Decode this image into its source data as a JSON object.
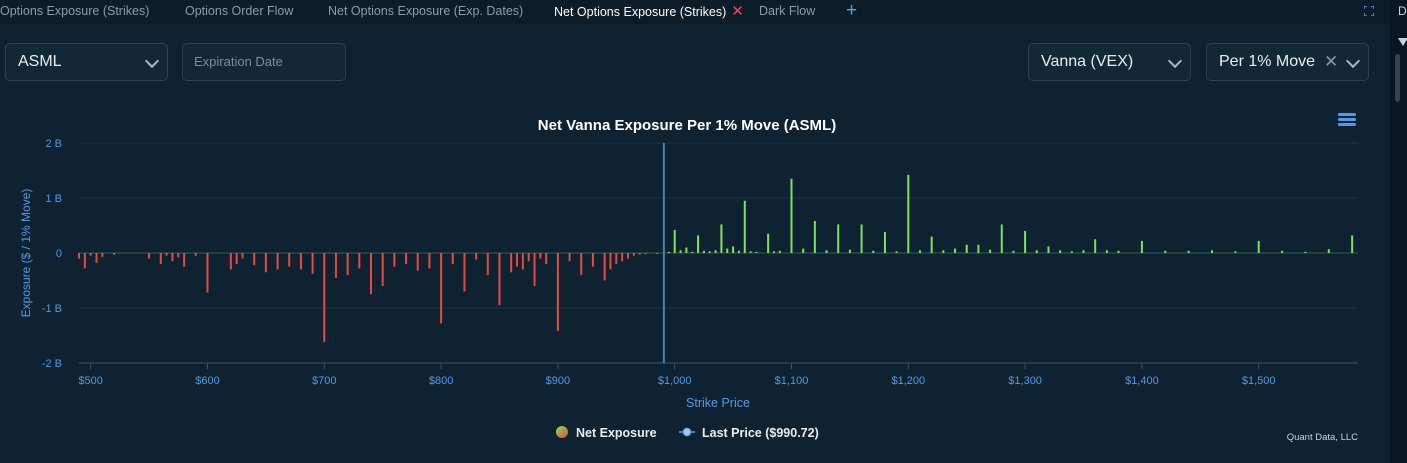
{
  "tabs": [
    {
      "label": "Options Exposure (Strikes)",
      "active": false
    },
    {
      "label": "Options Order Flow",
      "active": false
    },
    {
      "label": "Net Options Exposure (Exp. Dates)",
      "active": false
    },
    {
      "label": "Net Options Exposure (Strikes)",
      "active": true
    },
    {
      "label": "Dark Flow",
      "active": false
    }
  ],
  "tab_close_glyph": "✕",
  "tab_add_glyph": "+",
  "right_strip_label": "Da",
  "controls": {
    "ticker": "ASML",
    "expiration_placeholder": "Expiration Date",
    "greek": "Vanna (VEX)",
    "move": "Per 1% Move",
    "clear_glyph": "✕"
  },
  "colors": {
    "background": "#0f2231",
    "positive": "#7ee35a",
    "negative": "#e8483f",
    "last_price_line": "#4d7fb0",
    "axis_text": "#4f9be6"
  },
  "chart_data": {
    "type": "bar",
    "title": "Net Vanna Exposure Per 1% Move (ASML)",
    "xlabel": "Strike Price",
    "ylabel": "Exposure ($ / 1% Move)",
    "xlim": [
      490,
      1585
    ],
    "ylim": [
      -2,
      2
    ],
    "y_ticks": [
      {
        "value": 2,
        "label": "2 B"
      },
      {
        "value": 1,
        "label": "1 B"
      },
      {
        "value": 0,
        "label": "0"
      },
      {
        "value": -1,
        "label": "-1 B"
      },
      {
        "value": -2,
        "label": "-2 B"
      }
    ],
    "x_ticks": [
      {
        "value": 500,
        "label": "$500"
      },
      {
        "value": 600,
        "label": "$600"
      },
      {
        "value": 700,
        "label": "$700"
      },
      {
        "value": 800,
        "label": "$800"
      },
      {
        "value": 900,
        "label": "$900"
      },
      {
        "value": 1000,
        "label": "$1,000"
      },
      {
        "value": 1100,
        "label": "$1,100"
      },
      {
        "value": 1200,
        "label": "$1,200"
      },
      {
        "value": 1300,
        "label": "$1,300"
      },
      {
        "value": 1400,
        "label": "$1,400"
      },
      {
        "value": 1500,
        "label": "$1,500"
      }
    ],
    "last_price": 990.72,
    "legend": [
      {
        "name": "Net Exposure",
        "marker": "net"
      },
      {
        "name": "Last Price ($990.72)",
        "marker": "line"
      }
    ],
    "legend_position": "bottom",
    "grid": true,
    "credit": "Quant Data, LLC",
    "units": "billions",
    "series": [
      {
        "name": "Net Exposure",
        "points": [
          [
            490,
            -0.1
          ],
          [
            495,
            -0.28
          ],
          [
            500,
            -0.05
          ],
          [
            505,
            -0.18
          ],
          [
            510,
            -0.07
          ],
          [
            520,
            -0.03
          ],
          [
            550,
            -0.1
          ],
          [
            560,
            -0.2
          ],
          [
            565,
            -0.05
          ],
          [
            570,
            -0.15
          ],
          [
            575,
            -0.08
          ],
          [
            580,
            -0.25
          ],
          [
            590,
            -0.05
          ],
          [
            600,
            -0.72
          ],
          [
            620,
            -0.3
          ],
          [
            625,
            -0.2
          ],
          [
            630,
            -0.1
          ],
          [
            640,
            -0.22
          ],
          [
            650,
            -0.35
          ],
          [
            660,
            -0.3
          ],
          [
            670,
            -0.25
          ],
          [
            680,
            -0.3
          ],
          [
            690,
            -0.38
          ],
          [
            700,
            -1.62
          ],
          [
            710,
            -0.45
          ],
          [
            720,
            -0.4
          ],
          [
            730,
            -0.28
          ],
          [
            740,
            -0.75
          ],
          [
            750,
            -0.6
          ],
          [
            760,
            -0.25
          ],
          [
            770,
            -0.2
          ],
          [
            780,
            -0.32
          ],
          [
            790,
            -0.28
          ],
          [
            800,
            -1.28
          ],
          [
            810,
            -0.2
          ],
          [
            820,
            -0.7
          ],
          [
            830,
            -0.12
          ],
          [
            840,
            -0.4
          ],
          [
            850,
            -0.95
          ],
          [
            860,
            -0.35
          ],
          [
            865,
            -0.25
          ],
          [
            870,
            -0.3
          ],
          [
            875,
            -0.15
          ],
          [
            880,
            -0.6
          ],
          [
            885,
            -0.1
          ],
          [
            890,
            -0.2
          ],
          [
            900,
            -1.42
          ],
          [
            910,
            -0.15
          ],
          [
            920,
            -0.4
          ],
          [
            930,
            -0.25
          ],
          [
            940,
            -0.5
          ],
          [
            945,
            -0.3
          ],
          [
            950,
            -0.2
          ],
          [
            955,
            -0.15
          ],
          [
            960,
            -0.1
          ],
          [
            965,
            -0.05
          ],
          [
            970,
            -0.03
          ],
          [
            975,
            -0.02
          ],
          [
            985,
            -0.01
          ],
          [
            995,
            0.02
          ],
          [
            1000,
            0.42
          ],
          [
            1005,
            0.05
          ],
          [
            1010,
            0.1
          ],
          [
            1015,
            0.02
          ],
          [
            1020,
            0.32
          ],
          [
            1025,
            0.04
          ],
          [
            1030,
            0.03
          ],
          [
            1035,
            0.05
          ],
          [
            1040,
            0.52
          ],
          [
            1045,
            0.08
          ],
          [
            1050,
            0.12
          ],
          [
            1055,
            0.04
          ],
          [
            1060,
            0.95
          ],
          [
            1065,
            0.03
          ],
          [
            1070,
            0.02
          ],
          [
            1080,
            0.35
          ],
          [
            1085,
            0.03
          ],
          [
            1090,
            0.04
          ],
          [
            1100,
            1.35
          ],
          [
            1110,
            0.08
          ],
          [
            1120,
            0.58
          ],
          [
            1130,
            0.05
          ],
          [
            1140,
            0.52
          ],
          [
            1150,
            0.06
          ],
          [
            1160,
            0.52
          ],
          [
            1170,
            0.04
          ],
          [
            1180,
            0.38
          ],
          [
            1190,
            0.03
          ],
          [
            1200,
            1.42
          ],
          [
            1210,
            0.05
          ],
          [
            1220,
            0.3
          ],
          [
            1230,
            0.05
          ],
          [
            1240,
            0.08
          ],
          [
            1250,
            0.15
          ],
          [
            1260,
            0.15
          ],
          [
            1270,
            0.06
          ],
          [
            1280,
            0.52
          ],
          [
            1290,
            0.04
          ],
          [
            1300,
            0.4
          ],
          [
            1310,
            0.05
          ],
          [
            1320,
            0.12
          ],
          [
            1330,
            0.05
          ],
          [
            1340,
            0.03
          ],
          [
            1350,
            0.05
          ],
          [
            1360,
            0.25
          ],
          [
            1370,
            0.05
          ],
          [
            1380,
            0.04
          ],
          [
            1400,
            0.22
          ],
          [
            1420,
            0.04
          ],
          [
            1440,
            0.04
          ],
          [
            1460,
            0.05
          ],
          [
            1480,
            0.03
          ],
          [
            1500,
            0.22
          ],
          [
            1520,
            0.04
          ],
          [
            1540,
            0.02
          ],
          [
            1560,
            0.07
          ],
          [
            1580,
            0.32
          ]
        ]
      }
    ]
  }
}
